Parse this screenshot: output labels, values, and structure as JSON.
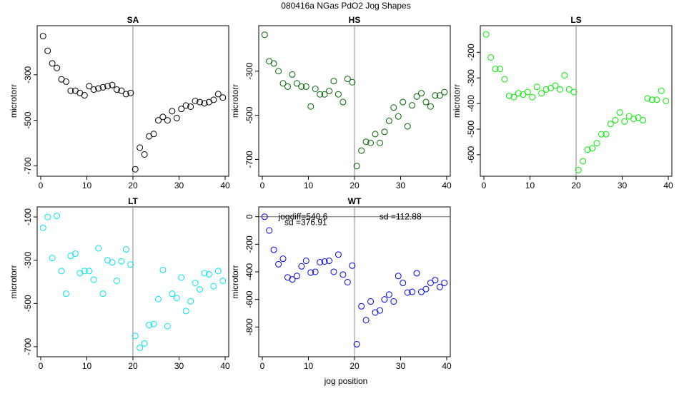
{
  "figure": {
    "title": "080416a   NGas PdO2 Jog Shapes",
    "xlabel": "jog position"
  },
  "chart_data": [
    {
      "type": "scatter",
      "title": "SA",
      "ylabel": "microtorr",
      "color": "#000000",
      "xlim": [
        0,
        40
      ],
      "ylim": [
        -730,
        -100
      ],
      "xticks": [
        0,
        10,
        20,
        30,
        40
      ],
      "yticks": [
        -700,
        -500,
        -300
      ],
      "vline": 20,
      "annotations": [],
      "x": [
        0.5,
        1.5,
        2.5,
        3.5,
        4.5,
        5.5,
        6.5,
        7.5,
        8.5,
        9.5,
        10.5,
        11.5,
        12.5,
        13.5,
        14.5,
        15.5,
        16.5,
        17.5,
        18.5,
        19.5,
        20.5,
        21.5,
        22.5,
        23.5,
        24.5,
        25.5,
        26.5,
        27.5,
        28.5,
        29.5,
        30.5,
        31.5,
        32.5,
        33.5,
        34.5,
        35.5,
        36.5,
        37.5,
        38.5,
        39.5
      ],
      "y": [
        -130,
        -195,
        -250,
        -270,
        -320,
        -330,
        -370,
        -370,
        -380,
        -390,
        -350,
        -365,
        -360,
        -355,
        -350,
        -345,
        -365,
        -370,
        -385,
        -380,
        -715,
        -620,
        -650,
        -570,
        -560,
        -500,
        -485,
        -500,
        -460,
        -490,
        -450,
        -435,
        -440,
        -415,
        -420,
        -425,
        -420,
        -410,
        -385,
        -400
      ]
    },
    {
      "type": "scatter",
      "title": "HS",
      "ylabel": "microtorr",
      "color": "#006400",
      "xlim": [
        0,
        40
      ],
      "ylim": [
        -760,
        -110
      ],
      "xticks": [
        0,
        10,
        20,
        30,
        40
      ],
      "yticks": [
        -700,
        -500,
        -300
      ],
      "vline": 20,
      "annotations": [],
      "x": [
        0.5,
        1.5,
        2.5,
        3.5,
        4.5,
        5.5,
        6.5,
        7.5,
        8.5,
        9.5,
        10.5,
        11.5,
        12.5,
        13.5,
        14.5,
        15.5,
        16.5,
        17.5,
        18.5,
        19.5,
        20.5,
        21.5,
        22.5,
        23.5,
        24.5,
        25.5,
        26.5,
        27.5,
        28.5,
        29.5,
        30.5,
        31.5,
        32.5,
        33.5,
        34.5,
        35.5,
        36.5,
        37.5,
        38.5,
        39.5
      ],
      "y": [
        -135,
        -255,
        -265,
        -300,
        -355,
        -370,
        -315,
        -355,
        -370,
        -370,
        -460,
        -380,
        -405,
        -405,
        -390,
        -345,
        -405,
        -440,
        -335,
        -350,
        -730,
        -660,
        -620,
        -625,
        -585,
        -625,
        -575,
        -525,
        -465,
        -505,
        -440,
        -550,
        -455,
        -415,
        -400,
        -440,
        -460,
        -410,
        -410,
        -395
      ]
    },
    {
      "type": "scatter",
      "title": "LS",
      "ylabel": "microtorr",
      "color": "#00ee00",
      "xlim": [
        0,
        40
      ],
      "ylim": [
        -670,
        -110
      ],
      "xticks": [
        0,
        10,
        20,
        30,
        40
      ],
      "yticks": [
        -600,
        -500,
        -400,
        -300,
        -200
      ],
      "vline": 20,
      "annotations": [],
      "x": [
        0.5,
        1.5,
        2.5,
        3.5,
        4.5,
        5.5,
        6.5,
        7.5,
        8.5,
        9.5,
        10.5,
        11.5,
        12.5,
        13.5,
        14.5,
        15.5,
        16.5,
        17.5,
        18.5,
        19.5,
        20.5,
        21.5,
        22.5,
        23.5,
        24.5,
        25.5,
        26.5,
        27.5,
        28.5,
        29.5,
        30.5,
        31.5,
        32.5,
        33.5,
        34.5,
        35.5,
        36.5,
        37.5,
        38.5,
        39.5
      ],
      "y": [
        -130,
        -220,
        -265,
        -265,
        -305,
        -370,
        -375,
        -360,
        -365,
        -355,
        -375,
        -335,
        -360,
        -345,
        -340,
        -330,
        -345,
        -290,
        -345,
        -355,
        -660,
        -625,
        -580,
        -575,
        -555,
        -520,
        -520,
        -480,
        -465,
        -435,
        -470,
        -450,
        -460,
        -455,
        -465,
        -380,
        -385,
        -385,
        -350,
        -390
      ]
    },
    {
      "type": "scatter",
      "title": "LT",
      "ylabel": "microtorr",
      "color": "#00e5ee",
      "xlim": [
        0,
        40
      ],
      "ylim": [
        -730,
        -70
      ],
      "xticks": [
        0,
        10,
        20,
        30,
        40
      ],
      "yticks": [
        -700,
        -500,
        -300,
        -100
      ],
      "vline": 20,
      "annotations": [],
      "x": [
        0.5,
        1.5,
        2.5,
        3.5,
        4.5,
        5.5,
        6.5,
        7.5,
        8.5,
        9.5,
        10.5,
        11.5,
        12.5,
        13.5,
        14.5,
        15.5,
        16.5,
        17.5,
        18.5,
        19.5,
        20.5,
        21.5,
        22.5,
        23.5,
        24.5,
        25.5,
        26.5,
        27.5,
        28.5,
        29.5,
        30.5,
        31.5,
        32.5,
        33.5,
        34.5,
        35.5,
        36.5,
        37.5,
        38.5,
        39.5
      ],
      "y": [
        -150,
        -100,
        -290,
        -95,
        -350,
        -455,
        -280,
        -270,
        -360,
        -350,
        -350,
        -390,
        -245,
        -455,
        -300,
        -310,
        -395,
        -305,
        -250,
        -320,
        -650,
        -705,
        -685,
        -600,
        -595,
        -480,
        -345,
        -605,
        -455,
        -475,
        -380,
        -535,
        -490,
        -405,
        -435,
        -360,
        -365,
        -420,
        -350,
        -395
      ]
    },
    {
      "type": "scatter",
      "title": "WT",
      "ylabel": "microtorr",
      "color": "#0000ee",
      "xlim": [
        0,
        40
      ],
      "ylim": [
        -990,
        45
      ],
      "xticks": [
        0,
        10,
        20,
        30,
        40
      ],
      "yticks": [
        -800,
        -600,
        -400,
        -200,
        0
      ],
      "vline": 20,
      "hline": 0,
      "annotations": [
        {
          "text": "jogdiff=540.6",
          "x": 3.5,
          "y": 0
        },
        {
          "text": "sd =376.91",
          "x": 4.8,
          "y": -40
        },
        {
          "text": "sd =112.88",
          "x": 25.4,
          "y": 0
        }
      ],
      "x": [
        0.5,
        1.5,
        2.5,
        3.5,
        4.5,
        5.5,
        6.5,
        7.5,
        8.5,
        9.5,
        10.5,
        11.5,
        12.5,
        13.5,
        14.5,
        15.5,
        16.5,
        17.5,
        18.5,
        19.5,
        20.5,
        21.5,
        22.5,
        23.5,
        24.5,
        25.5,
        26.5,
        27.5,
        28.5,
        29.5,
        30.5,
        31.5,
        32.5,
        33.5,
        34.5,
        35.5,
        36.5,
        37.5,
        38.5,
        39.5
      ],
      "y": [
        0,
        -100,
        -240,
        -345,
        -305,
        -440,
        -455,
        -430,
        -360,
        -320,
        -405,
        -400,
        -330,
        -325,
        -320,
        -400,
        -275,
        -420,
        -475,
        -355,
        -925,
        -650,
        -750,
        -615,
        -695,
        -680,
        -600,
        -565,
        -615,
        -430,
        -480,
        -550,
        -545,
        -410,
        -545,
        -525,
        -480,
        -460,
        -510,
        -480
      ]
    }
  ]
}
